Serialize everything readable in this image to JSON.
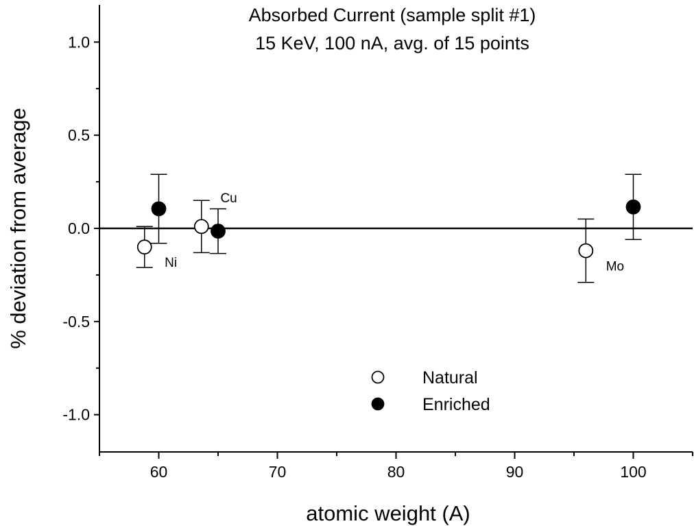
{
  "chart_data": {
    "type": "scatter",
    "title": [
      "Absorbed Current (sample split #1)",
      "15 KeV, 100 nA, avg. of 15 points"
    ],
    "xlabel": "atomic weight (A)",
    "ylabel": "% deviation from average",
    "xlim": [
      55,
      105
    ],
    "ylim": [
      -1.2,
      1.2
    ],
    "x_ticks": [
      60,
      70,
      80,
      90,
      100
    ],
    "y_ticks": [
      1.0,
      0.5,
      0.0,
      -0.5,
      -1.0
    ],
    "x_tick_labels": [
      "60",
      "70",
      "80",
      "90",
      "100"
    ],
    "y_tick_labels": [
      "1.0",
      "0.5",
      "0.0",
      "-0.5",
      "-1.0"
    ],
    "reference_line_y": 0.0,
    "grid": false,
    "legend_position": "bottom-center",
    "series": [
      {
        "name": "Natural",
        "marker": "open-circle",
        "points": [
          {
            "x": 58.8,
            "y": -0.1,
            "err": 0.11
          },
          {
            "x": 63.6,
            "y": 0.01,
            "err": 0.14
          },
          {
            "x": 96.0,
            "y": -0.12,
            "err": 0.17
          }
        ]
      },
      {
        "name": "Enriched",
        "marker": "filled-circle",
        "points": [
          {
            "x": 60.0,
            "y": 0.105,
            "err": 0.185
          },
          {
            "x": 65.0,
            "y": -0.015,
            "err": 0.12
          },
          {
            "x": 100.0,
            "y": 0.115,
            "err": 0.175
          }
        ]
      }
    ],
    "annotations": [
      {
        "text": "Ni",
        "x": 60.5,
        "y": -0.18
      },
      {
        "text": "Cu",
        "x": 65.2,
        "y": 0.165
      },
      {
        "text": "Mo",
        "x": 97.7,
        "y": -0.2
      }
    ]
  }
}
